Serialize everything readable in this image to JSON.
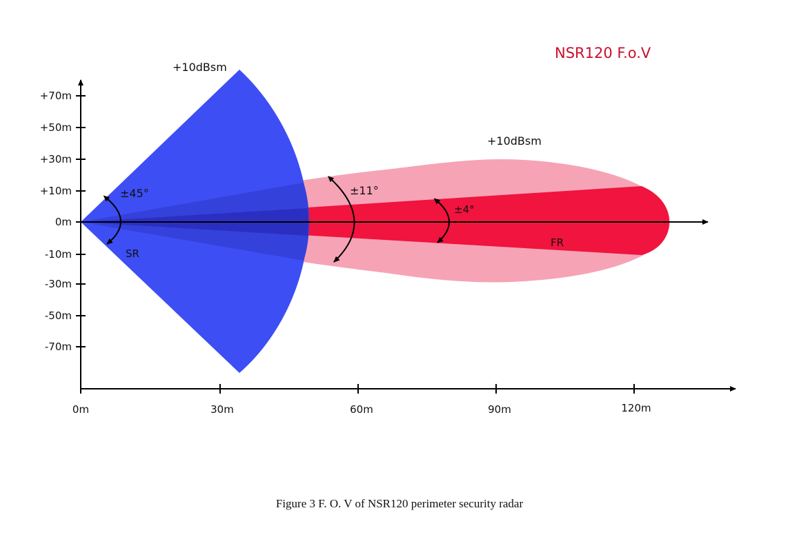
{
  "chart_data": {
    "type": "diagram",
    "title": "NSR120 F.o.V",
    "x_axis": {
      "ticks": [
        "0m",
        "30m",
        "60m",
        "90m",
        "120m"
      ],
      "values": [
        0,
        30,
        60,
        90,
        120
      ]
    },
    "y_axis": {
      "ticks": [
        "+70m",
        "+50m",
        "+30m",
        "+10m",
        "0m",
        "-10m",
        "-30m",
        "-50m",
        "-70m"
      ]
    },
    "regions": [
      {
        "name": "SR",
        "label": "SR",
        "half_angle_label": "±45°",
        "rcs_label": "+10dBsm",
        "color": "#3d4ef5"
      },
      {
        "name": "FR",
        "label": "FR",
        "wide_half_angle_label": "±11°",
        "narrow_half_angle_label": "±4°",
        "rcs_label": "+10dBsm",
        "wide_color": "#f6a3b6",
        "narrow_color": "#f0143e"
      }
    ]
  },
  "caption": "Figure 3 F. O. V of NSR120 perimeter security radar"
}
